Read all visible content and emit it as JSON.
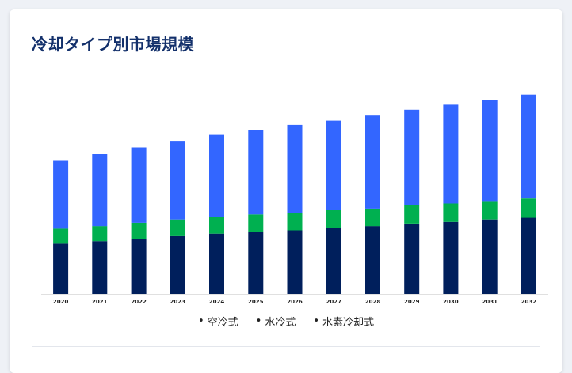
{
  "header": {
    "title": "冷却タイプ別市場規模"
  },
  "chart_data": {
    "type": "bar",
    "stacked": true,
    "title": "冷却タイプ別市場規模",
    "xlabel": "",
    "ylabel": "",
    "grid": false,
    "legend_position": "bottom",
    "categories": [
      "2020",
      "2021",
      "2022",
      "2023",
      "2024",
      "2025",
      "2026",
      "2027",
      "2028",
      "2029",
      "2030",
      "2031",
      "2032"
    ],
    "series": [
      {
        "name": "空冷式",
        "color": "#001f5c",
        "values": [
          60,
          63,
          66,
          69,
          72,
          74,
          76,
          79,
          81,
          84,
          86,
          89,
          91
        ]
      },
      {
        "name": "水冷式",
        "color": "#00b050",
        "values": [
          18,
          18,
          19,
          20,
          20,
          21,
          21,
          21,
          21,
          22,
          22,
          22,
          23
        ]
      },
      {
        "name": "水素冷却式",
        "color": "#3366ff",
        "values": [
          81,
          86,
          90,
          93,
          98,
          101,
          105,
          107,
          111,
          114,
          118,
          121,
          124
        ]
      }
    ],
    "ylim": [
      0,
      250
    ]
  },
  "legend": {
    "items": [
      {
        "label": "空冷式"
      },
      {
        "label": "水冷式"
      },
      {
        "label": "水素冷却式"
      }
    ]
  }
}
